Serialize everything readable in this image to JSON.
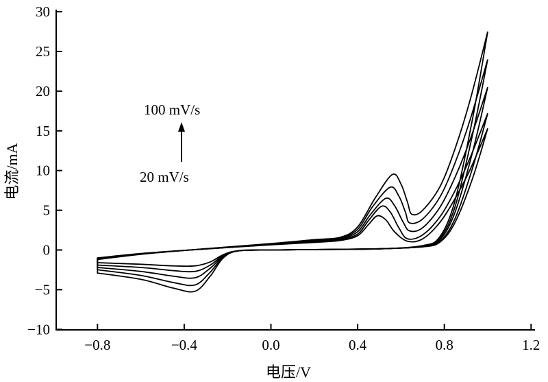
{
  "chart_data": {
    "type": "line",
    "title": "",
    "xlabel": "电压/V",
    "ylabel": "电流/mA",
    "xlim": [
      -1.0,
      1.2
    ],
    "ylim": [
      -10,
      30
    ],
    "xticks": [
      -0.8,
      -0.4,
      0.0,
      0.4,
      0.8,
      1.2
    ],
    "xtick_labels": [
      "−0.8",
      "−0.4",
      "0.0",
      "0.4",
      "0.8",
      "1.2"
    ],
    "yticks": [
      -10,
      -5,
      0,
      5,
      10,
      15,
      20,
      25,
      30
    ],
    "ytick_labels": [
      "−10",
      "−5",
      "0",
      "5",
      "10",
      "15",
      "20",
      "25",
      "30"
    ],
    "grid": false,
    "line_color": "#000000",
    "annotations": {
      "top": "100 mV/s",
      "bottom": "20 mV/s"
    },
    "series": [
      {
        "forward": [
          [
            -0.8,
            -1.0
          ],
          [
            -0.6,
            -0.45
          ],
          [
            -0.4,
            -0.05
          ],
          [
            -0.2,
            0.3
          ],
          [
            0,
            0.65
          ],
          [
            0.2,
            0.95
          ],
          [
            0.32,
            1.2
          ],
          [
            0.4,
            1.8
          ],
          [
            0.45,
            3.2
          ],
          [
            0.49,
            4.3
          ],
          [
            0.53,
            3.8
          ],
          [
            0.57,
            2.3
          ],
          [
            0.63,
            1.1
          ],
          [
            0.7,
            1.4
          ],
          [
            0.78,
            3.5
          ],
          [
            0.85,
            6.5
          ],
          [
            0.92,
            10.2
          ],
          [
            1.0,
            15.3
          ]
        ],
        "reverse": [
          [
            1.0,
            15.3
          ],
          [
            0.93,
            9
          ],
          [
            0.85,
            3.5
          ],
          [
            0.78,
            1.0
          ],
          [
            0.7,
            0.4
          ],
          [
            0.5,
            0.15
          ],
          [
            0.2,
            0.05
          ],
          [
            0,
            0
          ],
          [
            -0.15,
            -0.1
          ],
          [
            -0.22,
            -0.6
          ],
          [
            -0.28,
            -1.5
          ],
          [
            -0.35,
            -2.0
          ],
          [
            -0.45,
            -2.0
          ],
          [
            -0.6,
            -1.8
          ],
          [
            -0.8,
            -1.6
          ]
        ]
      },
      {
        "forward": [
          [
            -0.8,
            -1.05
          ],
          [
            -0.6,
            -0.47
          ],
          [
            -0.4,
            -0.05
          ],
          [
            -0.2,
            0.32
          ],
          [
            0,
            0.68
          ],
          [
            0.2,
            1.0
          ],
          [
            0.32,
            1.3
          ],
          [
            0.4,
            2.0
          ],
          [
            0.45,
            3.7
          ],
          [
            0.51,
            5.5
          ],
          [
            0.55,
            4.8
          ],
          [
            0.59,
            2.8
          ],
          [
            0.63,
            1.4
          ],
          [
            0.7,
            1.9
          ],
          [
            0.78,
            4.2
          ],
          [
            0.85,
            7.5
          ],
          [
            0.92,
            11.7
          ],
          [
            1.0,
            17.2
          ]
        ],
        "reverse": [
          [
            1.0,
            17.2
          ],
          [
            0.93,
            10.3
          ],
          [
            0.85,
            4.0
          ],
          [
            0.78,
            1.1
          ],
          [
            0.7,
            0.4
          ],
          [
            0.5,
            0.15
          ],
          [
            0.2,
            0.05
          ],
          [
            0,
            0
          ],
          [
            -0.15,
            -0.1
          ],
          [
            -0.22,
            -0.7
          ],
          [
            -0.28,
            -1.9
          ],
          [
            -0.35,
            -2.7
          ],
          [
            -0.45,
            -2.6
          ],
          [
            -0.6,
            -2.2
          ],
          [
            -0.8,
            -1.9
          ]
        ]
      },
      {
        "forward": [
          [
            -0.8,
            -1.1
          ],
          [
            -0.6,
            -0.5
          ],
          [
            -0.4,
            -0.05
          ],
          [
            -0.2,
            0.34
          ],
          [
            0,
            0.72
          ],
          [
            0.2,
            1.1
          ],
          [
            0.32,
            1.4
          ],
          [
            0.4,
            2.3
          ],
          [
            0.46,
            4.5
          ],
          [
            0.53,
            6.5
          ],
          [
            0.57,
            5.6
          ],
          [
            0.61,
            3.5
          ],
          [
            0.64,
            2.4
          ],
          [
            0.7,
            2.8
          ],
          [
            0.78,
            5.4
          ],
          [
            0.85,
            9.2
          ],
          [
            0.92,
            14
          ],
          [
            1.0,
            20.5
          ]
        ],
        "reverse": [
          [
            1.0,
            20.5
          ],
          [
            0.93,
            12.3
          ],
          [
            0.85,
            4.8
          ],
          [
            0.78,
            1.3
          ],
          [
            0.7,
            0.45
          ],
          [
            0.5,
            0.15
          ],
          [
            0.2,
            0.05
          ],
          [
            0,
            0
          ],
          [
            -0.15,
            -0.1
          ],
          [
            -0.22,
            -0.8
          ],
          [
            -0.28,
            -2.3
          ],
          [
            -0.35,
            -3.5
          ],
          [
            -0.45,
            -3.3
          ],
          [
            -0.6,
            -2.7
          ],
          [
            -0.8,
            -2.2
          ]
        ]
      },
      {
        "forward": [
          [
            -0.8,
            -1.15
          ],
          [
            -0.6,
            -0.52
          ],
          [
            -0.4,
            -0.05
          ],
          [
            -0.2,
            0.36
          ],
          [
            0,
            0.76
          ],
          [
            0.2,
            1.2
          ],
          [
            0.32,
            1.5
          ],
          [
            0.4,
            2.6
          ],
          [
            0.47,
            5.5
          ],
          [
            0.55,
            7.9
          ],
          [
            0.59,
            6.8
          ],
          [
            0.62,
            4.8
          ],
          [
            0.64,
            3.4
          ],
          [
            0.7,
            3.9
          ],
          [
            0.78,
            6.7
          ],
          [
            0.85,
            11
          ],
          [
            0.92,
            16.5
          ],
          [
            1.0,
            24
          ]
        ],
        "reverse": [
          [
            1.0,
            24
          ],
          [
            0.93,
            14.5
          ],
          [
            0.85,
            5.5
          ],
          [
            0.78,
            1.5
          ],
          [
            0.7,
            0.5
          ],
          [
            0.5,
            0.15
          ],
          [
            0.2,
            0.05
          ],
          [
            0,
            0
          ],
          [
            -0.15,
            -0.1
          ],
          [
            -0.22,
            -0.9
          ],
          [
            -0.28,
            -2.8
          ],
          [
            -0.35,
            -4.4
          ],
          [
            -0.45,
            -4.1
          ],
          [
            -0.6,
            -3.2
          ],
          [
            -0.8,
            -2.5
          ]
        ]
      },
      {
        "forward": [
          [
            -0.8,
            -1.2
          ],
          [
            -0.6,
            -0.55
          ],
          [
            -0.4,
            -0.05
          ],
          [
            -0.2,
            0.38
          ],
          [
            0,
            0.8
          ],
          [
            0.2,
            1.3
          ],
          [
            0.32,
            1.6
          ],
          [
            0.4,
            2.9
          ],
          [
            0.48,
            6.5
          ],
          [
            0.56,
            9.5
          ],
          [
            0.6,
            8.3
          ],
          [
            0.63,
            6.0
          ],
          [
            0.65,
            4.5
          ],
          [
            0.7,
            5.0
          ],
          [
            0.78,
            8.0
          ],
          [
            0.85,
            12.8
          ],
          [
            0.92,
            19
          ],
          [
            1.0,
            27.5
          ]
        ],
        "reverse": [
          [
            1.0,
            27.5
          ],
          [
            0.93,
            16.5
          ],
          [
            0.85,
            6.3
          ],
          [
            0.78,
            1.7
          ],
          [
            0.7,
            0.55
          ],
          [
            0.5,
            0.15
          ],
          [
            0.2,
            0.05
          ],
          [
            0,
            0
          ],
          [
            -0.15,
            -0.1
          ],
          [
            -0.22,
            -1.0
          ],
          [
            -0.28,
            -3.3
          ],
          [
            -0.35,
            -5.2
          ],
          [
            -0.45,
            -4.8
          ],
          [
            -0.6,
            -3.7
          ],
          [
            -0.8,
            -2.9
          ]
        ]
      }
    ]
  }
}
